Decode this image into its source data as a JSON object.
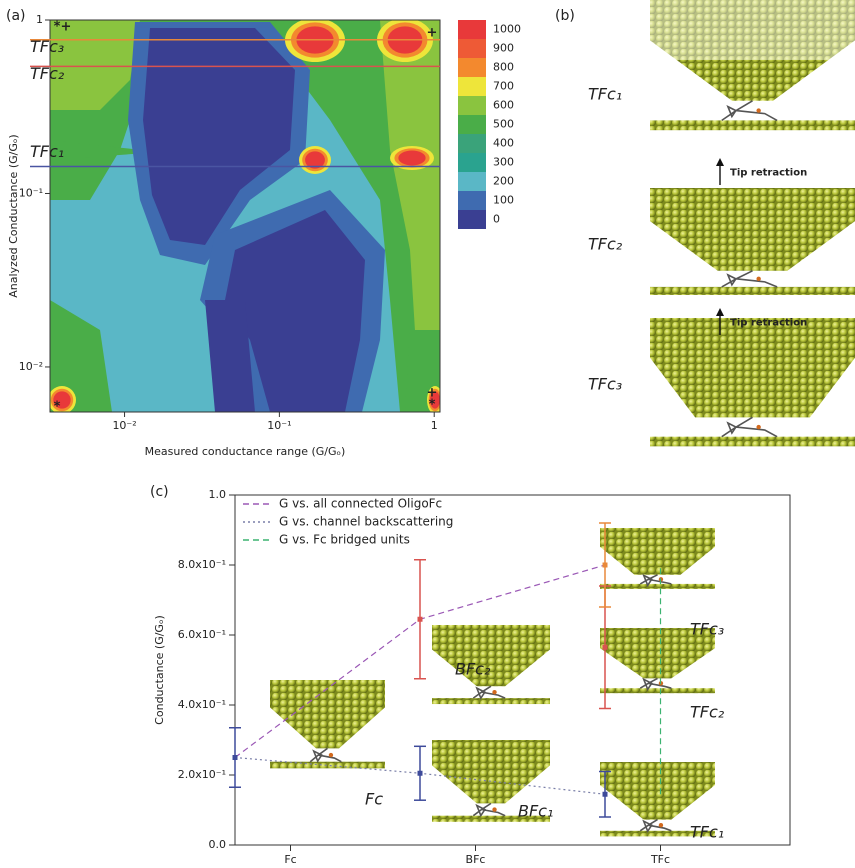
{
  "panel_b": {
    "label": "(b)",
    "structures": [
      "TFc₁",
      "TFc₂",
      "TFc₃"
    ],
    "arrow_text": [
      "Tip retraction",
      "Tip retraction"
    ]
  },
  "chart_data": [
    {
      "type": "contour",
      "panel": "(a)",
      "x_label": "Measured conductance range (G/Gₒ)",
      "y_label": "Analyzed Conductance (G/Gₒ)",
      "log_x": true,
      "log_y": true,
      "xlim": [
        0.0033,
        1.09
      ],
      "ylim": [
        0.0055,
        1.0
      ],
      "xticks": [
        {
          "value": 0.01,
          "label": "10⁻²"
        },
        {
          "value": 0.1,
          "label": "10⁻¹"
        },
        1
      ],
      "yticks": [
        {
          "value": 0.01,
          "label": "10⁻²"
        },
        {
          "value": 0.1,
          "label": "10⁻¹"
        },
        1
      ],
      "levels": [
        0,
        100,
        200,
        300,
        400,
        500,
        600,
        700,
        800,
        900,
        1000
      ],
      "colors": [
        "#3a3f92",
        "#3f6bb0",
        "#5ab7c6",
        "#2aa38f",
        "#3aa37a",
        "#4aad48",
        "#8ac43f",
        "#eee53a",
        "#f3892e",
        "#ee5a36",
        "#e8393a"
      ],
      "annotations": [
        {
          "label": "TFc₃",
          "y": 0.77,
          "color": "#e8883a"
        },
        {
          "label": "TFc₂",
          "y": 0.54,
          "color": "#d9534f"
        },
        {
          "label": "TFc₁",
          "y": 0.143,
          "color": "#4a55a2"
        }
      ],
      "corner_marks": [
        "*",
        "+",
        "+",
        "*",
        "+",
        "*"
      ]
    },
    {
      "type": "errorbar",
      "panel": "(c)",
      "y_label": "Conductance (G/Gₒ)",
      "categories": [
        "Fc",
        "BFc",
        "TFc"
      ],
      "ylim": [
        0,
        1.0
      ],
      "yticks": [
        {
          "value": 0,
          "label": "0.0"
        },
        {
          "value": 0.2,
          "label": "2.0x10⁻¹"
        },
        {
          "value": 0.4,
          "label": "4.0x10⁻¹"
        },
        {
          "value": 0.6,
          "label": "6.0x10⁻¹"
        },
        {
          "value": 0.8,
          "label": "8.0x10⁻¹"
        },
        {
          "value": 1.0,
          "label": "1.0"
        }
      ],
      "points": [
        {
          "label": "Fc",
          "category": 0,
          "value": 0.25,
          "error": 0.085,
          "color": "#3d4a9a"
        },
        {
          "label": "BFc₁",
          "category": 1,
          "value": 0.205,
          "error": 0.077,
          "color": "#3d4a9a"
        },
        {
          "label": "BFc₂",
          "category": 1,
          "value": 0.645,
          "error": 0.17,
          "color": "#d9534f"
        },
        {
          "label": "TFc₁",
          "category": 2,
          "value": 0.145,
          "error": 0.065,
          "color": "#3d4a9a"
        },
        {
          "label": "TFc₂",
          "category": 2,
          "value": 0.565,
          "error": 0.175,
          "color": "#d9534f"
        },
        {
          "label": "TFc₃",
          "category": 2,
          "value": 0.8,
          "error": 0.12,
          "color": "#e8883a"
        }
      ],
      "series": [
        {
          "name": "G vs. all connected OligoFc",
          "color": "#9b59b6",
          "dash": "6,4",
          "points": [
            0,
            2,
            5
          ]
        },
        {
          "name": "G vs. channel backscattering",
          "color": "#7a7fa8",
          "dash": "2,3",
          "points": [
            0,
            1,
            3
          ]
        },
        {
          "name": "G vs. Fc bridged units",
          "color": "#3cb371",
          "dash": "6,4",
          "points": [
            3,
            4,
            5
          ]
        }
      ]
    }
  ]
}
